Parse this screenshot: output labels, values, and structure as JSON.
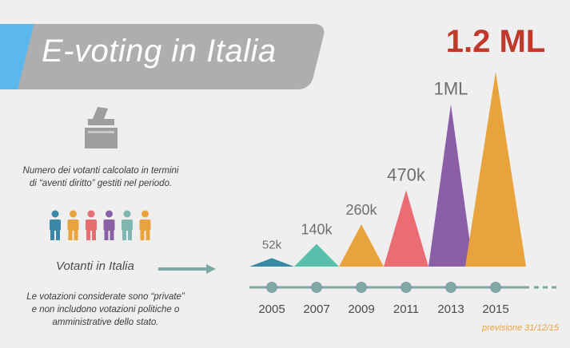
{
  "header": {
    "title": "E-voting in Italia"
  },
  "description": {
    "line1": "Numero dei votanti calcolato in termini",
    "line2": "di “aventi diritto” gestiti nel periodo."
  },
  "votanti_label": "Votanti in Italia",
  "note": {
    "line1": "Le votazioni considerate sono “private”",
    "line2": "e non includono votazioni politiche o",
    "line3": "amministrative dello stato."
  },
  "forecast_note": "previsione 31/12/15",
  "people_colors": [
    "#3a87a8",
    "#e8a33c",
    "#e76e6e",
    "#8b5fa8",
    "#7fb6b0",
    "#e8a33c"
  ],
  "icons": {
    "ballot": "ballot-box-icon",
    "arrow": "arrow-right-icon",
    "people": "person-icon"
  },
  "chart_data": {
    "type": "area",
    "title": "",
    "xlabel": "",
    "ylabel": "",
    "categories": [
      "2005",
      "2007",
      "2009",
      "2011",
      "2013",
      "2015"
    ],
    "values": [
      52000,
      140000,
      260000,
      470000,
      1000000,
      1200000
    ],
    "labels": [
      "52k",
      "140k",
      "260k",
      "470k",
      "1ML",
      "1.2 ML"
    ],
    "colors": [
      "#3a87a8",
      "#5bbfae",
      "#e8a33c",
      "#e96d72",
      "#8b5fa8",
      "#e8a33c"
    ],
    "label_colors": [
      "#6e6e6e",
      "#6e6e6e",
      "#6e6e6e",
      "#6e6e6e",
      "#6e6e6e",
      "#c0392b"
    ],
    "timeline_color": "#7fa7a4"
  }
}
